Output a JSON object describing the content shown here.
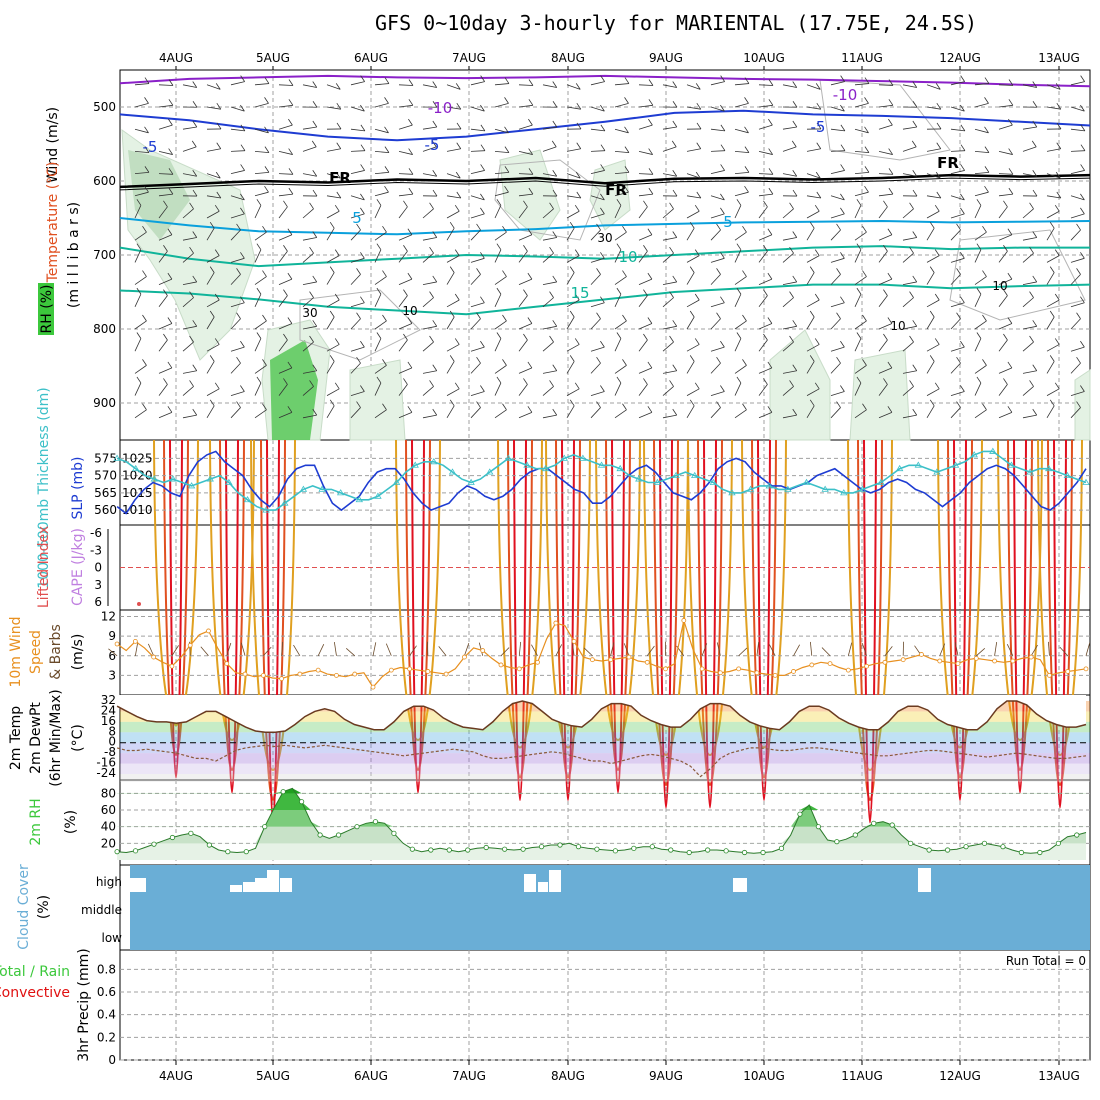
{
  "title": "GFS 0~10day 3-hourly for MARIENTAL (17.75E, 24.5S)",
  "dates": [
    "4AUG",
    "5AUG",
    "6AUG",
    "7AUG",
    "8AUG",
    "9AUG",
    "10AUG",
    "11AUG",
    "12AUG",
    "13AUG"
  ],
  "colors": {
    "wind": "#000000",
    "temp_cold": "#1e3cd2",
    "temp_mid": "#0aa0dc",
    "temp_teal": "#10b49a",
    "temp_warm": "#e0a020",
    "temp_hot": "#e05020",
    "temp_vhot": "#e01020",
    "temp_neg10": "#8a20c8",
    "rh": "#3cc83c",
    "slp": "#1e3cd2",
    "thickness": "#3cc0c8",
    "lifted_index": "#e05050",
    "cape": "#c080e0",
    "wind10m": "#e89020",
    "barbs": "#6a4a2a",
    "cloud": "#6aaed6",
    "precip_total": "#3cc83c",
    "precip_conv": "#e01010"
  },
  "chart_data": [
    {
      "panel": "upper_air",
      "type": "contour",
      "ylabels": {
        "wind": "Wind (m/s)",
        "temperature": "Temperature (°C)",
        "rh": "RH (%)",
        "pressure": "(m i l l i b a r s)"
      },
      "y_ticks": [
        500,
        600,
        700,
        800,
        900
      ],
      "ylim": [
        950,
        450
      ],
      "temperature_contour_labels": [
        "-10",
        "-10",
        "-5",
        "-5",
        "-5",
        "FR",
        "FR",
        "FR",
        "5",
        "5",
        "10",
        "15"
      ],
      "rh_contour_labels": [
        "30",
        "30",
        "10",
        "10",
        "10"
      ],
      "temperature_lines": [
        {
          "level": -10,
          "pressure": [
            468,
            462,
            460,
            458,
            460,
            461,
            460,
            458,
            460,
            462,
            463,
            465,
            467,
            470,
            472
          ]
        },
        {
          "level": -5,
          "pressure": [
            510,
            518,
            530,
            540,
            545,
            540,
            530,
            520,
            508,
            505,
            510,
            512,
            515,
            520,
            525
          ]
        },
        {
          "level": 0,
          "pressure": [
            608,
            604,
            600,
            602,
            598,
            600,
            596,
            603,
            597,
            596,
            598,
            596,
            592,
            594,
            592
          ]
        },
        {
          "level": 5,
          "pressure": [
            650,
            660,
            668,
            670,
            672,
            668,
            665,
            660,
            658,
            656,
            655,
            654,
            656,
            655,
            654
          ]
        },
        {
          "level": 10,
          "pressure": [
            690,
            705,
            715,
            710,
            705,
            700,
            702,
            705,
            700,
            695,
            690,
            688,
            692,
            690,
            690
          ]
        },
        {
          "level": 15,
          "pressure": [
            748,
            752,
            760,
            770,
            775,
            780,
            770,
            760,
            750,
            745,
            740,
            740,
            745,
            742,
            740
          ]
        }
      ]
    },
    {
      "panel": "slp_thickness",
      "type": "line",
      "ylabels": {
        "thickness": "1000-500mb Thickness (dm)",
        "slp": "SLP (mb)"
      },
      "left_ticks": [
        "575",
        "570",
        "565",
        "560"
      ],
      "right_ticks": [
        "1025",
        "1020",
        "1015",
        "1010"
      ],
      "series": [
        {
          "name": "SLP (mb)",
          "axis": "right",
          "values": [
            1011,
            1009,
            1013,
            1016,
            1018,
            1017,
            1015,
            1014,
            1020,
            1024,
            1026,
            1027,
            1024,
            1022,
            1020,
            1016,
            1013,
            1011,
            1014,
            1019,
            1022,
            1023,
            1023,
            1017,
            1012,
            1010,
            1012,
            1014,
            1018,
            1021,
            1022,
            1022,
            1019,
            1015,
            1012,
            1010,
            1011,
            1012,
            1015,
            1017,
            1016,
            1014,
            1013,
            1014,
            1016,
            1019,
            1021,
            1022,
            1022,
            1020,
            1018,
            1016,
            1015,
            1012,
            1012,
            1014,
            1017,
            1020,
            1022,
            1023,
            1021,
            1018,
            1015,
            1014,
            1013,
            1015,
            1018,
            1022,
            1024,
            1025,
            1024,
            1021,
            1019,
            1017,
            1017,
            1016,
            1017,
            1018,
            1020,
            1021,
            1022,
            1020,
            1018,
            1016,
            1015,
            1016,
            1018,
            1019,
            1018,
            1016,
            1015,
            1013,
            1011,
            1013,
            1015,
            1018,
            1020,
            1022,
            1023,
            1022,
            1020,
            1017,
            1014,
            1011,
            1010,
            1012,
            1015,
            1018,
            1022
          ]
        },
        {
          "name": "1000-500mb Thickness (dm)",
          "axis": "left",
          "values": [
            575,
            574,
            572,
            570,
            569,
            568,
            569,
            568,
            567,
            568,
            569,
            570,
            568,
            565,
            563,
            561,
            560,
            560,
            562,
            564,
            566,
            567,
            566,
            566,
            565,
            564,
            563,
            563,
            564,
            566,
            568,
            571,
            573,
            574,
            574,
            573,
            571,
            569,
            568,
            569,
            571,
            573,
            575,
            574,
            573,
            572,
            572,
            573,
            575,
            576,
            575,
            574,
            573,
            573,
            572,
            570,
            569,
            568,
            568,
            569,
            570,
            571,
            570,
            569,
            568,
            566,
            565,
            565,
            566,
            567,
            567,
            566,
            566,
            567,
            568,
            567,
            566,
            566,
            565,
            565,
            566,
            567,
            568,
            570,
            572,
            573,
            573,
            572,
            571,
            572,
            573,
            574,
            576,
            577,
            577,
            575,
            573,
            572,
            571,
            572,
            572,
            571,
            570,
            569,
            568
          ]
        }
      ]
    },
    {
      "panel": "cape_li",
      "type": "line",
      "ylabels": {
        "li": "Lifted Index",
        "cape": "CAPE (J/kg)"
      },
      "left_ticks": [
        "-6",
        "-3",
        "0",
        "3",
        "6"
      ],
      "li_zero_line": true,
      "series": []
    },
    {
      "panel": "wind10m",
      "type": "line",
      "ylabels": {
        "a": "10m Wind",
        "b": "Speed",
        "c": "& Barbs",
        "units": "(m/s)"
      },
      "left_ticks": [
        "12",
        "9",
        "6",
        "3"
      ],
      "series": [
        {
          "name": "Speed",
          "values": [
            7.8,
            6.8,
            8.2,
            7.2,
            5.8,
            5.0,
            4.4,
            5.8,
            7.6,
            9.2,
            9.8,
            7.2,
            4.8,
            3.4,
            3.2,
            2.8,
            3.0,
            2.6,
            2.5,
            3.0,
            3.2,
            3.6,
            3.8,
            3.2,
            3.0,
            2.8,
            3.2,
            3.4,
            1.2,
            2.8,
            3.8,
            4.2,
            4.0,
            3.8,
            3.6,
            3.4,
            3.2,
            4.0,
            5.8,
            7.2,
            6.8,
            5.6,
            4.6,
            4.2,
            4.0,
            4.6,
            5.0,
            8.6,
            11.0,
            10.6,
            8.2,
            5.8,
            5.4,
            5.2,
            5.4,
            5.6,
            5.8,
            5.2,
            5.0,
            4.4,
            4.0,
            4.8,
            11.4,
            7.0,
            4.0,
            3.6,
            3.4,
            3.6,
            4.0,
            3.8,
            3.4,
            3.2,
            3.0,
            3.0,
            3.6,
            4.2,
            4.6,
            5.0,
            4.8,
            4.2,
            3.8,
            4.0,
            4.4,
            4.8,
            5.0,
            5.2,
            5.4,
            5.8,
            6.2,
            5.6,
            5.2,
            5.0,
            4.8,
            5.4,
            5.6,
            5.4,
            5.2,
            5.0,
            5.2,
            5.6,
            5.8,
            5.4,
            3.0,
            3.4,
            3.6,
            3.8,
            4.0
          ]
        }
      ]
    },
    {
      "panel": "temperature_2m",
      "type": "area",
      "ylabels": {
        "a": "2m Temp",
        "b": "2m DewPt",
        "c": "(6hr Min/Max)",
        "units": "(°C)"
      },
      "left_ticks": [
        "32",
        "24",
        "16",
        "8",
        "0",
        "-8",
        "-16",
        "-24"
      ],
      "series": [
        {
          "name": "2m Temp",
          "values": [
            28,
            24,
            20,
            17,
            16,
            16,
            15,
            16,
            20,
            24,
            24,
            20,
            16,
            12,
            9,
            8,
            8,
            9,
            14,
            20,
            24,
            26,
            24,
            18,
            14,
            12,
            10,
            10,
            16,
            24,
            28,
            28,
            25,
            19,
            15,
            12,
            11,
            10,
            16,
            24,
            30,
            32,
            30,
            24,
            18,
            15,
            13,
            12,
            18,
            26,
            30,
            30,
            28,
            21,
            17,
            14,
            12,
            12,
            18,
            26,
            30,
            30,
            28,
            21,
            16,
            13,
            11,
            10,
            16,
            24,
            28,
            28,
            25,
            19,
            15,
            12,
            10,
            10,
            16,
            24,
            28,
            28,
            25,
            18,
            14,
            12,
            10,
            10,
            16,
            26,
            32,
            32,
            29,
            22,
            17,
            14,
            12,
            12,
            14
          ]
        },
        {
          "name": "2m DewPt",
          "values": [
            -4,
            -6,
            -6,
            -5,
            -6,
            -7,
            -8,
            -10,
            -12,
            -12,
            -14,
            -10,
            -6,
            -4,
            -3,
            -2,
            -3,
            -2,
            -3,
            -4,
            -3,
            -2,
            -3,
            -4,
            -5,
            -6,
            -7,
            -8,
            -9,
            -10,
            -9,
            -8,
            -7,
            -6,
            -5,
            -6,
            -7,
            -10,
            -12,
            -12,
            -11,
            -10,
            -9,
            -8,
            -7,
            -8,
            -10,
            -12,
            -14,
            -14,
            -16,
            -14,
            -12,
            -10,
            -9,
            -10,
            -12,
            -14,
            -18,
            -26,
            -20,
            -12,
            -8,
            -6,
            -4,
            -4,
            -5,
            -6,
            -6,
            -5,
            -4,
            -4,
            -5,
            -6,
            -7,
            -8,
            -9,
            -10,
            -10,
            -9,
            -8,
            -7,
            -6,
            -6,
            -7,
            -8,
            -9,
            -10,
            -11,
            -10,
            -9,
            -8,
            -9,
            -10,
            -11,
            -12,
            -12,
            -11,
            -10
          ]
        }
      ]
    },
    {
      "panel": "rh_2m",
      "type": "area",
      "ylabels": {
        "a": "2m RH",
        "units": "(%)"
      },
      "left_ticks": [
        "80",
        "60",
        "40",
        "20"
      ],
      "series": [
        {
          "name": "2m RH",
          "values": [
            10,
            9,
            11,
            15,
            19,
            23,
            27,
            30,
            32,
            28,
            18,
            12,
            10,
            9,
            10,
            14,
            40,
            62,
            82,
            86,
            70,
            46,
            30,
            26,
            30,
            35,
            40,
            44,
            46,
            44,
            32,
            20,
            13,
            10,
            12,
            14,
            12,
            10,
            12,
            14,
            15,
            14,
            13,
            12,
            13,
            15,
            16,
            18,
            18,
            20,
            16,
            14,
            13,
            12,
            11,
            12,
            14,
            16,
            16,
            13,
            12,
            10,
            9,
            10,
            12,
            12,
            11,
            10,
            9,
            8,
            9,
            10,
            14,
            30,
            55,
            66,
            40,
            24,
            22,
            25,
            30,
            38,
            44,
            46,
            42,
            30,
            20,
            16,
            12,
            11,
            12,
            13,
            16,
            18,
            20,
            18,
            16,
            12,
            9,
            8,
            9,
            12,
            20,
            28,
            30,
            33
          ]
        }
      ]
    },
    {
      "panel": "cloud_cover",
      "type": "area",
      "ylabels": {
        "a": "Cloud Cover",
        "units": "(%)"
      },
      "category_labels": [
        "high",
        "middle",
        "low"
      ]
    },
    {
      "panel": "precip_3hr",
      "type": "bar",
      "ylabels": {
        "a": "Total / Rain",
        "b": "Convective",
        "c": "3hr Precip (mm)"
      },
      "left_ticks": [
        "0.8",
        "0.6",
        "0.4",
        "0.2",
        "0"
      ],
      "ylim": [
        0,
        0.9
      ],
      "annotation": "Run Total = 0",
      "values": []
    }
  ]
}
